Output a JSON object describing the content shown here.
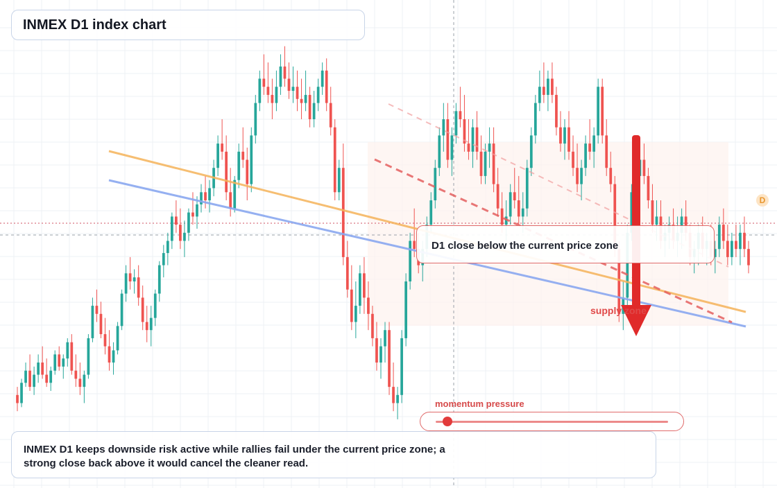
{
  "header": {
    "title": "INMEX D1 index chart"
  },
  "callout": {
    "text": "D1 close below the current price zone"
  },
  "supply_label": "supply zone",
  "momentum": {
    "label": "momentum pressure",
    "level": 0.05
  },
  "summary": {
    "text": "INMEX D1 keeps downside risk active while rallies fail under the current price zone; a strong close back above it would cancel the cleaner read."
  },
  "badge": {
    "letter": "D"
  },
  "colors": {
    "up": "#26a69a",
    "down": "#ef5350",
    "orange_trend": "#f5b35a",
    "blue_trend": "#8aa8f0",
    "signal_red": "#e02a2a",
    "zone_fill": "#fdf0ea"
  },
  "chart_data": {
    "type": "candlestick",
    "ylim": [
      0,
      100
    ],
    "candles": [
      [
        12,
        14,
        8,
        10
      ],
      [
        10,
        16,
        9,
        15
      ],
      [
        15,
        20,
        14,
        18
      ],
      [
        18,
        22,
        13,
        14
      ],
      [
        14,
        19,
        12,
        17
      ],
      [
        17,
        22,
        15,
        20
      ],
      [
        20,
        24,
        16,
        17
      ],
      [
        17,
        21,
        14,
        15
      ],
      [
        15,
        19,
        13,
        18
      ],
      [
        18,
        23,
        17,
        22
      ],
      [
        22,
        24,
        18,
        19
      ],
      [
        19,
        22,
        16,
        21
      ],
      [
        21,
        26,
        19,
        25
      ],
      [
        25,
        27,
        17,
        18
      ],
      [
        18,
        22,
        14,
        16
      ],
      [
        16,
        20,
        12,
        14
      ],
      [
        14,
        18,
        10,
        17
      ],
      [
        17,
        27,
        16,
        26
      ],
      [
        26,
        36,
        25,
        34
      ],
      [
        34,
        38,
        30,
        32
      ],
      [
        32,
        35,
        26,
        27
      ],
      [
        27,
        31,
        22,
        24
      ],
      [
        24,
        28,
        18,
        20
      ],
      [
        20,
        25,
        17,
        23
      ],
      [
        23,
        30,
        22,
        29
      ],
      [
        29,
        38,
        28,
        37
      ],
      [
        37,
        44,
        35,
        42
      ],
      [
        42,
        46,
        38,
        40
      ],
      [
        40,
        43,
        37,
        41
      ],
      [
        41,
        44,
        34,
        36
      ],
      [
        36,
        39,
        28,
        30
      ],
      [
        30,
        34,
        25,
        28
      ],
      [
        28,
        34,
        24,
        31
      ],
      [
        31,
        38,
        29,
        37
      ],
      [
        37,
        45,
        35,
        44
      ],
      [
        44,
        49,
        41,
        47
      ],
      [
        47,
        52,
        44,
        50
      ],
      [
        50,
        57,
        48,
        56
      ],
      [
        56,
        60,
        52,
        54
      ],
      [
        54,
        58,
        48,
        50
      ],
      [
        50,
        55,
        46,
        52
      ],
      [
        52,
        58,
        50,
        57
      ],
      [
        57,
        62,
        54,
        56
      ],
      [
        56,
        61,
        53,
        59
      ],
      [
        59,
        64,
        57,
        62
      ],
      [
        62,
        66,
        58,
        60
      ],
      [
        60,
        65,
        57,
        63
      ],
      [
        63,
        70,
        61,
        68
      ],
      [
        68,
        76,
        66,
        74
      ],
      [
        74,
        80,
        70,
        72
      ],
      [
        72,
        76,
        60,
        62
      ],
      [
        62,
        68,
        56,
        58
      ],
      [
        58,
        66,
        57,
        65
      ],
      [
        65,
        74,
        63,
        72
      ],
      [
        72,
        78,
        68,
        70
      ],
      [
        70,
        73,
        60,
        64
      ],
      [
        64,
        78,
        62,
        76
      ],
      [
        76,
        86,
        74,
        84
      ],
      [
        84,
        92,
        82,
        90
      ],
      [
        90,
        96,
        86,
        88
      ],
      [
        88,
        94,
        84,
        86
      ],
      [
        86,
        90,
        80,
        84
      ],
      [
        84,
        92,
        82,
        88
      ],
      [
        88,
        96,
        86,
        93
      ],
      [
        93,
        98,
        88,
        90
      ],
      [
        90,
        94,
        85,
        87
      ],
      [
        87,
        93,
        84,
        88
      ],
      [
        88,
        92,
        82,
        85
      ],
      [
        85,
        90,
        80,
        84
      ],
      [
        84,
        92,
        82,
        86
      ],
      [
        86,
        88,
        78,
        80
      ],
      [
        80,
        87,
        78,
        84
      ],
      [
        84,
        90,
        82,
        88
      ],
      [
        88,
        94,
        86,
        92
      ],
      [
        92,
        95,
        82,
        84
      ],
      [
        84,
        88,
        76,
        78
      ],
      [
        78,
        80,
        60,
        62
      ],
      [
        62,
        70,
        60,
        68
      ],
      [
        68,
        74,
        44,
        46
      ],
      [
        46,
        50,
        36,
        38
      ],
      [
        38,
        44,
        28,
        30
      ],
      [
        30,
        40,
        26,
        34
      ],
      [
        34,
        44,
        32,
        42
      ],
      [
        42,
        46,
        32,
        36
      ],
      [
        36,
        40,
        28,
        32
      ],
      [
        32,
        34,
        24,
        26
      ],
      [
        26,
        30,
        18,
        20
      ],
      [
        20,
        26,
        16,
        24
      ],
      [
        24,
        30,
        20,
        28
      ],
      [
        28,
        30,
        12,
        14
      ],
      [
        14,
        20,
        8,
        10
      ],
      [
        10,
        14,
        6,
        12
      ],
      [
        12,
        28,
        10,
        26
      ],
      [
        26,
        42,
        24,
        40
      ],
      [
        40,
        52,
        38,
        50
      ],
      [
        50,
        58,
        46,
        48
      ],
      [
        48,
        52,
        42,
        44
      ],
      [
        44,
        50,
        40,
        48
      ],
      [
        48,
        56,
        46,
        54
      ],
      [
        54,
        62,
        52,
        60
      ],
      [
        60,
        70,
        58,
        68
      ],
      [
        68,
        78,
        66,
        76
      ],
      [
        76,
        84,
        72,
        80
      ],
      [
        80,
        84,
        68,
        70
      ],
      [
        70,
        78,
        66,
        76
      ],
      [
        76,
        84,
        74,
        82
      ],
      [
        82,
        88,
        78,
        80
      ],
      [
        80,
        86,
        72,
        74
      ],
      [
        74,
        80,
        70,
        72
      ],
      [
        72,
        80,
        68,
        78
      ],
      [
        78,
        82,
        70,
        72
      ],
      [
        72,
        76,
        64,
        66
      ],
      [
        66,
        74,
        64,
        72
      ],
      [
        72,
        78,
        68,
        74
      ],
      [
        74,
        78,
        62,
        64
      ],
      [
        64,
        68,
        56,
        58
      ],
      [
        58,
        62,
        52,
        54
      ],
      [
        54,
        60,
        50,
        56
      ],
      [
        56,
        64,
        54,
        62
      ],
      [
        62,
        68,
        58,
        60
      ],
      [
        60,
        66,
        54,
        56
      ],
      [
        56,
        62,
        52,
        58
      ],
      [
        58,
        70,
        56,
        68
      ],
      [
        68,
        78,
        66,
        76
      ],
      [
        76,
        86,
        74,
        84
      ],
      [
        84,
        92,
        82,
        88
      ],
      [
        88,
        94,
        84,
        86
      ],
      [
        86,
        92,
        82,
        90
      ],
      [
        90,
        94,
        84,
        86
      ],
      [
        86,
        88,
        76,
        78
      ],
      [
        78,
        82,
        72,
        74
      ],
      [
        74,
        80,
        70,
        78
      ],
      [
        78,
        82,
        70,
        72
      ],
      [
        72,
        76,
        66,
        68
      ],
      [
        68,
        74,
        62,
        64
      ],
      [
        64,
        70,
        60,
        68
      ],
      [
        68,
        76,
        66,
        74
      ],
      [
        74,
        80,
        70,
        72
      ],
      [
        72,
        78,
        68,
        76
      ],
      [
        76,
        90,
        74,
        88
      ],
      [
        88,
        90,
        74,
        76
      ],
      [
        76,
        80,
        66,
        68
      ],
      [
        68,
        72,
        62,
        64
      ],
      [
        64,
        66,
        46,
        48
      ],
      [
        48,
        50,
        30,
        32
      ],
      [
        32,
        40,
        28,
        36
      ],
      [
        36,
        54,
        34,
        52
      ],
      [
        52,
        64,
        50,
        62
      ],
      [
        62,
        68,
        58,
        66
      ],
      [
        66,
        72,
        64,
        70
      ],
      [
        70,
        74,
        64,
        66
      ],
      [
        66,
        68,
        58,
        60
      ],
      [
        60,
        64,
        52,
        54
      ],
      [
        54,
        60,
        50,
        56
      ],
      [
        56,
        60,
        48,
        50
      ],
      [
        50,
        54,
        46,
        52
      ],
      [
        52,
        56,
        48,
        54
      ],
      [
        54,
        58,
        48,
        50
      ],
      [
        50,
        56,
        46,
        52
      ],
      [
        52,
        58,
        48,
        56
      ],
      [
        56,
        60,
        50,
        52
      ],
      [
        52,
        54,
        44,
        46
      ],
      [
        46,
        50,
        42,
        48
      ],
      [
        48,
        54,
        44,
        52
      ],
      [
        52,
        56,
        46,
        48
      ],
      [
        48,
        52,
        44,
        50
      ],
      [
        50,
        54,
        44,
        46
      ],
      [
        46,
        50,
        42,
        48
      ],
      [
        48,
        56,
        46,
        54
      ],
      [
        54,
        58,
        48,
        50
      ],
      [
        50,
        54,
        44,
        46
      ],
      [
        46,
        52,
        44,
        50
      ],
      [
        50,
        54,
        46,
        48
      ],
      [
        48,
        54,
        44,
        52
      ],
      [
        52,
        56,
        46,
        48
      ],
      [
        48,
        50,
        42,
        44
      ]
    ],
    "orange_trend": [
      [
        0,
        63
      ],
      [
        1,
        20
      ]
    ],
    "blue_trend": [
      [
        0,
        58
      ],
      [
        1,
        16
      ]
    ]
  }
}
